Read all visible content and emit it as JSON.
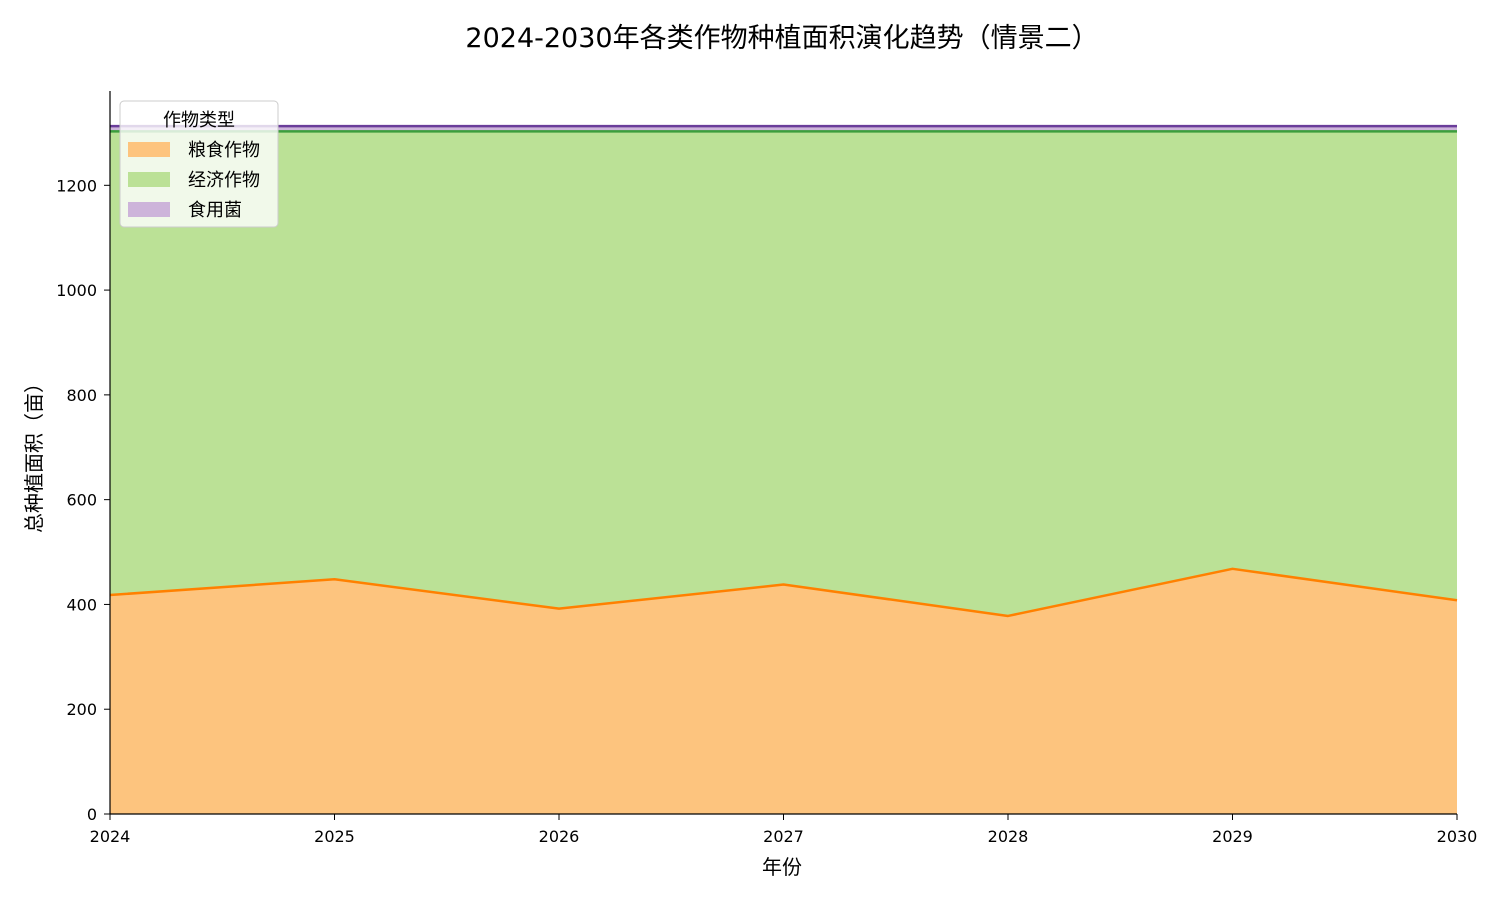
{
  "chart_data": {
    "type": "area",
    "stacked": true,
    "title": "2024-2030年各类作物种植面积演化趋势（情景二）",
    "xlabel": "年份",
    "ylabel": "总种植面积（亩）",
    "x": [
      "2024",
      "2025",
      "2026",
      "2027",
      "2028",
      "2029",
      "2030"
    ],
    "xlim": [
      2024,
      2030
    ],
    "ylim": [
      0,
      1380
    ],
    "yticks": [
      0,
      200,
      400,
      600,
      800,
      1000,
      1200
    ],
    "grid": "horizontal dashed",
    "legend": {
      "title": "作物类型",
      "placement": "top-left"
    },
    "series": [
      {
        "name": "粮食作物",
        "values": [
          418,
          448,
          392,
          438,
          378,
          468,
          408
        ],
        "fill": "#fdc47e",
        "line": "#ff8000"
      },
      {
        "name": "经济作物",
        "values": [
          885,
          855,
          911,
          865,
          925,
          835,
          895
        ],
        "fill": "#bbe196",
        "line": "#3c9e3c"
      },
      {
        "name": "食用菌",
        "values": [
          10,
          10,
          10,
          10,
          10,
          10,
          10
        ],
        "fill": "#cdb4da",
        "line": "#6a3d9a"
      }
    ]
  }
}
